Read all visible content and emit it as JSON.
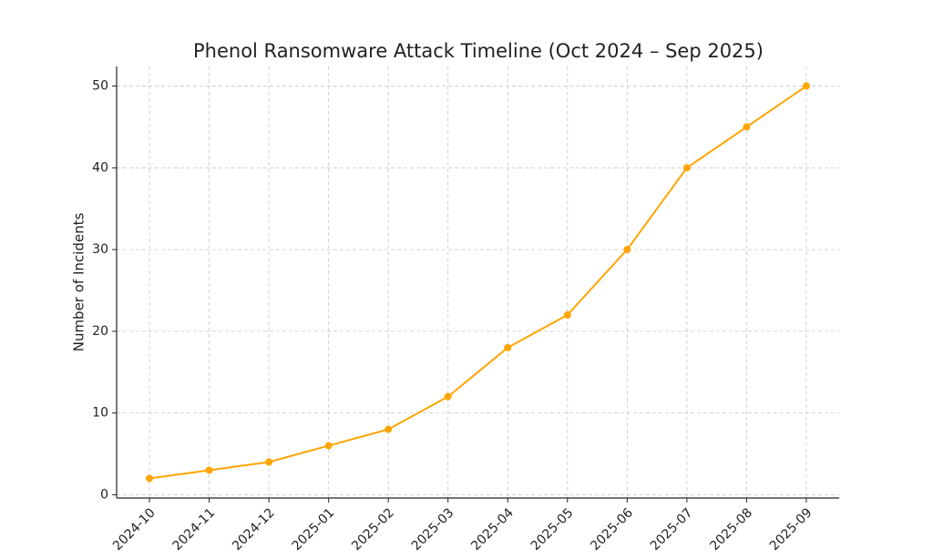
{
  "chart_data": {
    "type": "line",
    "title": "Phenol Ransomware Attack Timeline (Oct 2024 – Sep 2025)",
    "y_label": "Number of Incidents",
    "categories": [
      "2024-10",
      "2024-11",
      "2024-12",
      "2025-01",
      "2025-02",
      "2025-03",
      "2025-04",
      "2025-05",
      "2025-06",
      "2025-07",
      "2025-08",
      "2025-09"
    ],
    "values": [
      2,
      3,
      4,
      6,
      8,
      12,
      18,
      22,
      30,
      40,
      45,
      50
    ],
    "color": "#ffa500",
    "marker": "circle",
    "ylim": [
      -0.4,
      52.4
    ],
    "yticks": [
      0,
      10,
      20,
      30,
      40,
      50
    ],
    "grid": true
  }
}
